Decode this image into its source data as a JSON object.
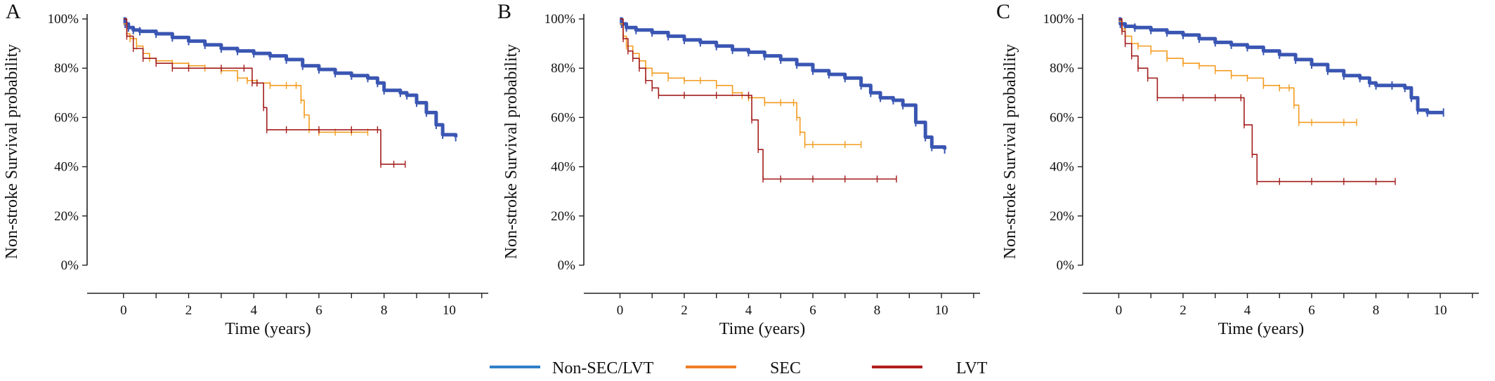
{
  "colors": {
    "non_sec_lvt": "#3a56b3",
    "sec": "#f39c1f",
    "lvt": "#a31d1d",
    "legend_non_sec_lvt": "#2f7fc8",
    "legend_sec": "#ef7d26",
    "legend_lvt": "#b01e1e"
  },
  "legend": {
    "items": [
      "Non-SEC/LVT",
      "SEC",
      "LVT"
    ]
  },
  "chart_data": [
    {
      "type": "line",
      "panel": "A",
      "xlabel": "Time (years)",
      "ylabel": "Non-stroke Survival probability",
      "xlim": [
        -0.6,
        11.2
      ],
      "ylim": [
        -0.04,
        1.02
      ],
      "x_ticks": [
        0,
        2,
        4,
        6,
        8,
        10
      ],
      "y_ticks": [
        0,
        0.2,
        0.4,
        0.6,
        0.8,
        1.0
      ],
      "y_tick_labels": [
        "0%",
        "20%",
        "40%",
        "60%",
        "80%",
        "100%"
      ],
      "series": [
        {
          "name": "Non-SEC/LVT",
          "color": "#3a56b3",
          "marker": "dense",
          "x": [
            0,
            0.05,
            0.15,
            0.3,
            0.5,
            1,
            1.5,
            2,
            2.5,
            3,
            3.5,
            4,
            4.5,
            5,
            5.5,
            6,
            6.5,
            7,
            7.5,
            7.8,
            8,
            8.5,
            8.7,
            9,
            9.3,
            9.6,
            9.8,
            10.2
          ],
          "y": [
            1.0,
            0.98,
            0.965,
            0.955,
            0.95,
            0.94,
            0.925,
            0.91,
            0.895,
            0.88,
            0.87,
            0.86,
            0.85,
            0.835,
            0.81,
            0.795,
            0.78,
            0.77,
            0.76,
            0.74,
            0.71,
            0.7,
            0.69,
            0.66,
            0.62,
            0.57,
            0.53,
            0.52
          ]
        },
        {
          "name": "SEC",
          "color": "#f39c1f",
          "marker": "ticks",
          "x": [
            0,
            0.1,
            0.2,
            0.4,
            0.6,
            0.8,
            1,
            1.5,
            2,
            2.5,
            3,
            3.5,
            3.8,
            4.1,
            4.5,
            5,
            5.3,
            5.45,
            5.55,
            5.7,
            6,
            6.5,
            7,
            7.5
          ],
          "y": [
            0.98,
            0.94,
            0.92,
            0.89,
            0.86,
            0.84,
            0.83,
            0.82,
            0.81,
            0.8,
            0.79,
            0.76,
            0.75,
            0.74,
            0.73,
            0.73,
            0.73,
            0.67,
            0.61,
            0.55,
            0.54,
            0.54,
            0.54,
            0.54
          ]
        },
        {
          "name": "LVT",
          "color": "#a31d1d",
          "marker": "ticks",
          "x": [
            0,
            0.1,
            0.3,
            0.6,
            1,
            1.5,
            2,
            3,
            3.7,
            3.95,
            4.1,
            4.3,
            4.4,
            5,
            6,
            7,
            7.8,
            7.9,
            8.3,
            8.65
          ],
          "y": [
            1.0,
            0.93,
            0.88,
            0.84,
            0.82,
            0.8,
            0.8,
            0.8,
            0.8,
            0.74,
            0.74,
            0.64,
            0.55,
            0.55,
            0.55,
            0.55,
            0.55,
            0.41,
            0.41,
            0.41
          ]
        }
      ]
    },
    {
      "type": "line",
      "panel": "B",
      "xlabel": "Time (years)",
      "ylabel": "Non-stroke Survival probability",
      "xlim": [
        -0.6,
        11.2
      ],
      "ylim": [
        -0.04,
        1.02
      ],
      "x_ticks": [
        0,
        2,
        4,
        6,
        8,
        10
      ],
      "y_ticks": [
        0,
        0.2,
        0.4,
        0.6,
        0.8,
        1.0
      ],
      "y_tick_labels": [
        "0%",
        "20%",
        "40%",
        "60%",
        "80%",
        "100%"
      ],
      "series": [
        {
          "name": "Non-SEC/LVT",
          "color": "#3a56b3",
          "marker": "dense",
          "x": [
            0,
            0.05,
            0.2,
            0.5,
            1,
            1.5,
            2,
            2.5,
            3,
            3.5,
            4,
            4.5,
            5,
            5.5,
            6,
            6.5,
            7,
            7.5,
            7.8,
            8.1,
            8.5,
            8.8,
            9.2,
            9.5,
            9.7,
            10.1
          ],
          "y": [
            1.0,
            0.98,
            0.965,
            0.955,
            0.945,
            0.93,
            0.915,
            0.905,
            0.89,
            0.875,
            0.865,
            0.85,
            0.835,
            0.815,
            0.79,
            0.775,
            0.76,
            0.73,
            0.7,
            0.68,
            0.67,
            0.65,
            0.58,
            0.52,
            0.48,
            0.47
          ]
        },
        {
          "name": "SEC",
          "color": "#f39c1f",
          "marker": "ticks",
          "x": [
            0,
            0.1,
            0.2,
            0.4,
            0.6,
            0.8,
            1,
            1.5,
            2,
            2.5,
            3,
            3.5,
            3.8,
            4,
            4.5,
            5,
            5.4,
            5.5,
            5.6,
            5.75,
            6,
            7,
            7.5
          ],
          "y": [
            0.98,
            0.93,
            0.89,
            0.86,
            0.83,
            0.8,
            0.78,
            0.76,
            0.75,
            0.75,
            0.73,
            0.7,
            0.69,
            0.68,
            0.66,
            0.66,
            0.66,
            0.6,
            0.54,
            0.49,
            0.49,
            0.49,
            0.49
          ]
        },
        {
          "name": "LVT",
          "color": "#a31d1d",
          "marker": "ticks",
          "x": [
            0,
            0.1,
            0.25,
            0.4,
            0.6,
            0.8,
            1,
            1.2,
            2,
            3,
            4,
            4.1,
            4.3,
            4.45,
            5,
            6,
            7,
            8,
            8.6
          ],
          "y": [
            1.0,
            0.92,
            0.87,
            0.84,
            0.8,
            0.75,
            0.72,
            0.69,
            0.69,
            0.69,
            0.69,
            0.59,
            0.47,
            0.35,
            0.35,
            0.35,
            0.35,
            0.35,
            0.35
          ]
        }
      ]
    },
    {
      "type": "line",
      "panel": "C",
      "xlabel": "Time (years)",
      "ylabel": "Non-stroke Survival probability",
      "xlim": [
        -0.6,
        11.2
      ],
      "ylim": [
        -0.04,
        1.02
      ],
      "x_ticks": [
        0,
        2,
        4,
        6,
        8,
        10
      ],
      "y_ticks": [
        0,
        0.2,
        0.4,
        0.6,
        0.8,
        1.0
      ],
      "y_tick_labels": [
        "0%",
        "20%",
        "40%",
        "60%",
        "80%",
        "100%"
      ],
      "series": [
        {
          "name": "Non-SEC/LVT",
          "color": "#3a56b3",
          "marker": "dense",
          "x": [
            0,
            0.05,
            0.2,
            0.5,
            1,
            1.5,
            2,
            2.5,
            3,
            3.5,
            4,
            4.5,
            5,
            5.5,
            6,
            6.5,
            7,
            7.5,
            7.8,
            8,
            8.5,
            8.9,
            9.1,
            9.3,
            9.6,
            10.1
          ],
          "y": [
            1.0,
            0.98,
            0.97,
            0.965,
            0.955,
            0.945,
            0.935,
            0.92,
            0.905,
            0.895,
            0.885,
            0.87,
            0.855,
            0.835,
            0.815,
            0.79,
            0.77,
            0.76,
            0.74,
            0.73,
            0.73,
            0.72,
            0.68,
            0.63,
            0.62,
            0.62
          ]
        },
        {
          "name": "SEC",
          "color": "#f39c1f",
          "marker": "ticks",
          "x": [
            0,
            0.1,
            0.2,
            0.4,
            0.6,
            1,
            1.5,
            2,
            2.5,
            3,
            3.5,
            4,
            4.5,
            5,
            5.3,
            5.45,
            5.6,
            6,
            7,
            7.4
          ],
          "y": [
            0.99,
            0.96,
            0.93,
            0.9,
            0.89,
            0.87,
            0.84,
            0.82,
            0.81,
            0.79,
            0.77,
            0.76,
            0.73,
            0.72,
            0.72,
            0.65,
            0.58,
            0.58,
            0.58,
            0.58
          ]
        },
        {
          "name": "LVT",
          "color": "#a31d1d",
          "marker": "ticks",
          "x": [
            0,
            0.1,
            0.2,
            0.4,
            0.6,
            0.9,
            1.2,
            2,
            3,
            3.8,
            3.9,
            4.15,
            4.3,
            5,
            6,
            7,
            8,
            8.6
          ],
          "y": [
            1.0,
            0.95,
            0.9,
            0.85,
            0.8,
            0.76,
            0.68,
            0.68,
            0.68,
            0.68,
            0.57,
            0.45,
            0.34,
            0.34,
            0.34,
            0.34,
            0.34,
            0.34
          ]
        }
      ]
    }
  ]
}
